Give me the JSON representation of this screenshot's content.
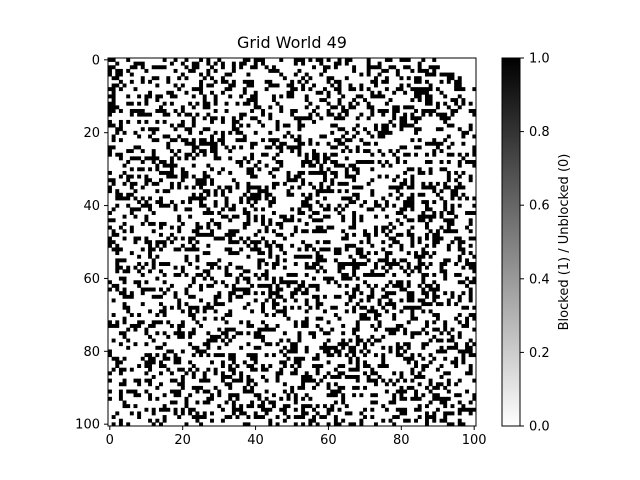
{
  "chart_data": {
    "type": "heatmap",
    "title": "Grid World 49",
    "grid_size": 101,
    "x_ticks": [
      0,
      20,
      40,
      60,
      80,
      100
    ],
    "y_ticks": [
      0,
      20,
      40,
      60,
      80,
      100
    ],
    "xlim": [
      0,
      101
    ],
    "ylim": [
      0,
      101
    ],
    "y_inverted": true,
    "blocked_fraction": 0.3,
    "unreached_corner": "top-right",
    "colormap": "gray_r",
    "colorbar": {
      "label": "Blocked (1) / Unblocked (0)",
      "range": [
        0.0,
        1.0
      ],
      "ticks": [
        0.0,
        0.2,
        0.4,
        0.6,
        0.8,
        1.0
      ],
      "tick_labels": [
        "0.0",
        "0.2",
        "0.4",
        "0.6",
        "0.8",
        "1.0"
      ]
    },
    "colors": {
      "blocked": "#000000",
      "unblocked": "#ffffff"
    }
  }
}
